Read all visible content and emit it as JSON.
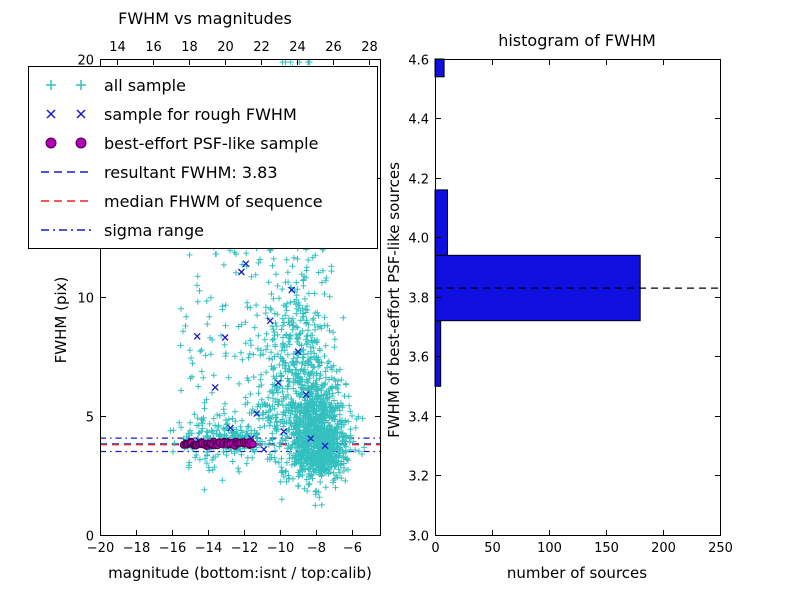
{
  "figure": {
    "bg": "#ffffff"
  },
  "colors": {
    "cyan": "#35c0c0",
    "blue": "#1a1acc",
    "magenta": "#b400b4",
    "magenta_edge": "#4a004a",
    "red": "#ee2222",
    "black": "#000000",
    "bar_fill": "#0f0fe0",
    "axis": "#000000"
  },
  "chart_data": [
    {
      "type": "scatter",
      "title": "FWHM vs magnitudes",
      "xlabel": "magnitude (bottom:isnt / top:calib)",
      "ylabel": "FWHM (pix)",
      "xlim": [
        -20,
        -4.45
      ],
      "ylim": [
        0,
        20
      ],
      "xticks": [
        -20,
        -18,
        -16,
        -14,
        -12,
        -10,
        -8,
        -6
      ],
      "yticks": [
        0,
        5,
        10,
        15,
        20
      ],
      "top_axis": {
        "lim": [
          13.06,
          28.62
        ],
        "ticks": [
          14,
          16,
          18,
          20,
          22,
          24,
          26,
          28
        ]
      },
      "grid": false,
      "legend_position": "upper left",
      "legend": [
        {
          "label": "all sample",
          "marker": "plus",
          "color": "cyan"
        },
        {
          "label": "sample for rough FWHM",
          "marker": "x",
          "color": "blue"
        },
        {
          "label": "best-effort PSF-like sample",
          "marker": "circle",
          "color": "magenta"
        },
        {
          "label": "resultant FWHM: 3.83",
          "marker": "dashed",
          "color": "blue"
        },
        {
          "label": "median FHWM of sequence",
          "marker": "dashed",
          "color": "red"
        },
        {
          "label": "sigma range",
          "marker": "dashdot",
          "color": "blue"
        }
      ],
      "hlines": [
        {
          "y": 3.83,
          "style": "dashed",
          "color": "blue",
          "name": "resultant-fwhm"
        },
        {
          "y": 3.79,
          "style": "dashed",
          "color": "red",
          "name": "median-fhwm"
        },
        {
          "y": 3.51,
          "style": "dashdot",
          "color": "blue",
          "name": "sigma-range-low"
        },
        {
          "y": 4.07,
          "style": "dashdot",
          "color": "blue",
          "name": "sigma-range-high"
        }
      ],
      "series": [
        {
          "name": "all sample",
          "marker": "plus",
          "color": "cyan",
          "seed": 77031,
          "clusters": [
            {
              "cx": -8.2,
              "cy": 4.6,
              "sx": 0.75,
              "sy": 1.1,
              "n": 600
            },
            {
              "cx": -8.0,
              "cy": 3.4,
              "sx": 0.55,
              "sy": 0.45,
              "n": 250
            },
            {
              "cx": -8.7,
              "cy": 7.8,
              "sx": 0.95,
              "sy": 1.6,
              "n": 260
            },
            {
              "cx": -9.2,
              "cy": 12.5,
              "sx": 0.9,
              "sy": 1.9,
              "n": 110
            },
            {
              "cx": -9.0,
              "cy": 16.5,
              "sx": 0.8,
              "sy": 1.5,
              "n": 40
            },
            {
              "cx": -8.9,
              "cy": 19.5,
              "sx": 0.6,
              "sy": 0.6,
              "n": 18
            },
            {
              "cx": -13.2,
              "cy": 4.1,
              "sx": 1.3,
              "sy": 0.55,
              "n": 130
            },
            {
              "cx": -7.2,
              "cy": 4.2,
              "sx": 0.5,
              "sy": 0.9,
              "n": 150
            },
            {
              "cx": -6.8,
              "cy": 3.8,
              "sx": 0.4,
              "sy": 0.7,
              "n": 60
            },
            {
              "cx": -10.3,
              "cy": 5.5,
              "sx": 0.7,
              "sy": 1.5,
              "n": 120
            }
          ],
          "boxes": [
            {
              "x0": -15.6,
              "x1": -10.2,
              "y0": 2.6,
              "y1": 12.2,
              "n": 130
            },
            {
              "x0": -10.4,
              "x1": -6.3,
              "y0": 2.2,
              "y1": 7.5,
              "n": 120
            },
            {
              "x0": -15.5,
              "x1": -11.2,
              "y0": 3.6,
              "y1": 4.4,
              "n": 60
            },
            {
              "x0": -6.6,
              "x1": -5.3,
              "y0": 3.0,
              "y1": 5.5,
              "n": 12
            }
          ],
          "points": [
            [
              -14.2,
              1.9
            ],
            [
              -13.2,
              2.3
            ],
            [
              -5.45,
              3.4
            ],
            [
              -5.8,
              4.5
            ],
            [
              -6.1,
              5.2
            ],
            [
              -9.9,
              1.5
            ]
          ]
        },
        {
          "name": "sample for rough FWHM",
          "marker": "x",
          "color": "blue",
          "points": [
            [
              -15.2,
              3.9
            ],
            [
              -14.9,
              3.8
            ],
            [
              -14.5,
              3.95
            ],
            [
              -14.2,
              3.8
            ],
            [
              -13.9,
              3.85
            ],
            [
              -13.6,
              3.9
            ],
            [
              -13.3,
              3.78
            ],
            [
              -13.0,
              3.88
            ],
            [
              -12.7,
              3.8
            ],
            [
              -12.45,
              3.92
            ],
            [
              -12.2,
              3.82
            ],
            [
              -11.95,
              3.85
            ],
            [
              -11.7,
              3.9
            ],
            [
              -11.6,
              4.05
            ],
            [
              -11.9,
              11.4
            ],
            [
              -12.15,
              11.05
            ],
            [
              -13.05,
              8.3
            ],
            [
              -14.6,
              8.35
            ],
            [
              -10.55,
              9.0
            ],
            [
              -9.35,
              10.3
            ],
            [
              -10.1,
              6.4
            ],
            [
              -11.3,
              5.1
            ],
            [
              -12.75,
              4.5
            ],
            [
              -9.0,
              7.7
            ],
            [
              -8.55,
              5.9
            ],
            [
              -9.8,
              4.35
            ],
            [
              -8.3,
              4.05
            ],
            [
              -7.5,
              3.75
            ],
            [
              -10.9,
              3.6
            ],
            [
              -13.6,
              6.2
            ]
          ]
        },
        {
          "name": "best-effort PSF-like sample",
          "marker": "circle",
          "color": "magenta",
          "band": {
            "x0": -15.35,
            "x1": -11.55,
            "y": 3.83,
            "y_jitter": 0.09,
            "n": 60,
            "seed": 4242
          }
        }
      ]
    },
    {
      "type": "bar",
      "orientation": "horizontal",
      "title": "histogram of FWHM",
      "xlabel": "number of sources",
      "ylabel": "FWHM of best-effort PSF-like sources",
      "xlim": [
        0,
        250
      ],
      "ylim": [
        3.0,
        4.6
      ],
      "xticks": [
        0,
        50,
        100,
        150,
        200,
        250
      ],
      "yticks": [
        3.0,
        3.2,
        3.4,
        3.6,
        3.8,
        4.0,
        4.2,
        4.4,
        4.6
      ],
      "bars": [
        {
          "from": 3.5,
          "to": 3.72,
          "count": 5
        },
        {
          "from": 3.72,
          "to": 3.94,
          "count": 180
        },
        {
          "from": 3.94,
          "to": 4.16,
          "count": 11
        },
        {
          "from": 4.54,
          "to": 4.6,
          "count": 8
        }
      ],
      "hlines": [
        {
          "y": 3.83,
          "style": "dashed",
          "color": "black",
          "name": "resultant-fwhm"
        }
      ]
    }
  ]
}
